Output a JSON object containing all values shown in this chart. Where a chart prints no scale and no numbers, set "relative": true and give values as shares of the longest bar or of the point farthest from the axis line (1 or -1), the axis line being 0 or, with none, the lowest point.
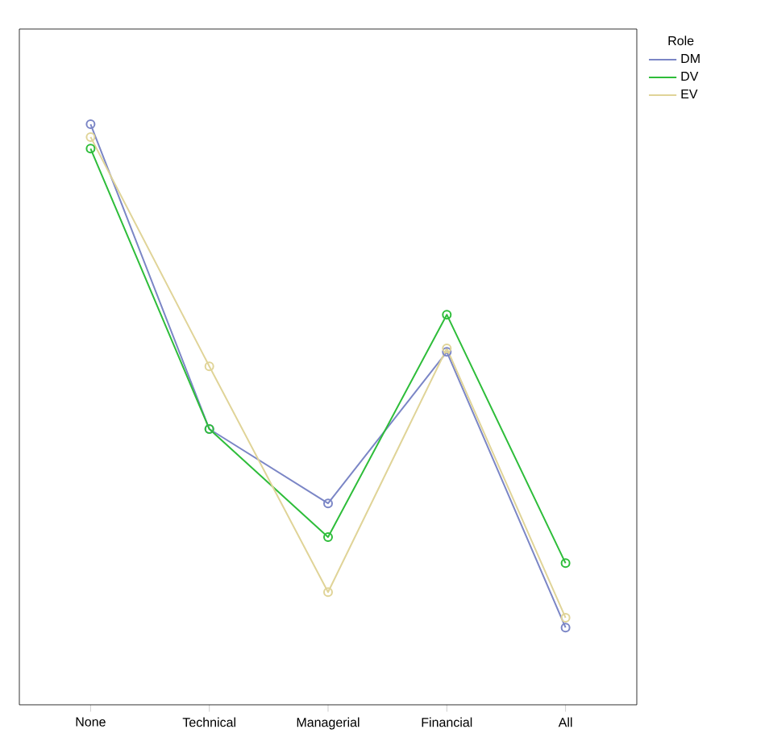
{
  "chart_data": {
    "type": "line",
    "relative": true,
    "legend_title": "Role",
    "legend": "top right",
    "marker": "circle",
    "line_style": "solid",
    "tick_labels": "x",
    "grid": false,
    "categories": [
      "None",
      "Technical",
      "Managerial",
      "Financial",
      "All"
    ],
    "series": [
      {
        "name": "DM",
        "color": "#7b86c6",
        "values": [
          1,
          0.475,
          0.347,
          0.608,
          0.133
        ]
      },
      {
        "name": "DV",
        "color": "#2ebd3a",
        "values": [
          0.958,
          0.475,
          0.289,
          0.672,
          0.244
        ]
      },
      {
        "name": "EV",
        "color": "#e0d498",
        "values": [
          0.978,
          0.583,
          0.194,
          0.614,
          0.15
        ]
      }
    ]
  }
}
